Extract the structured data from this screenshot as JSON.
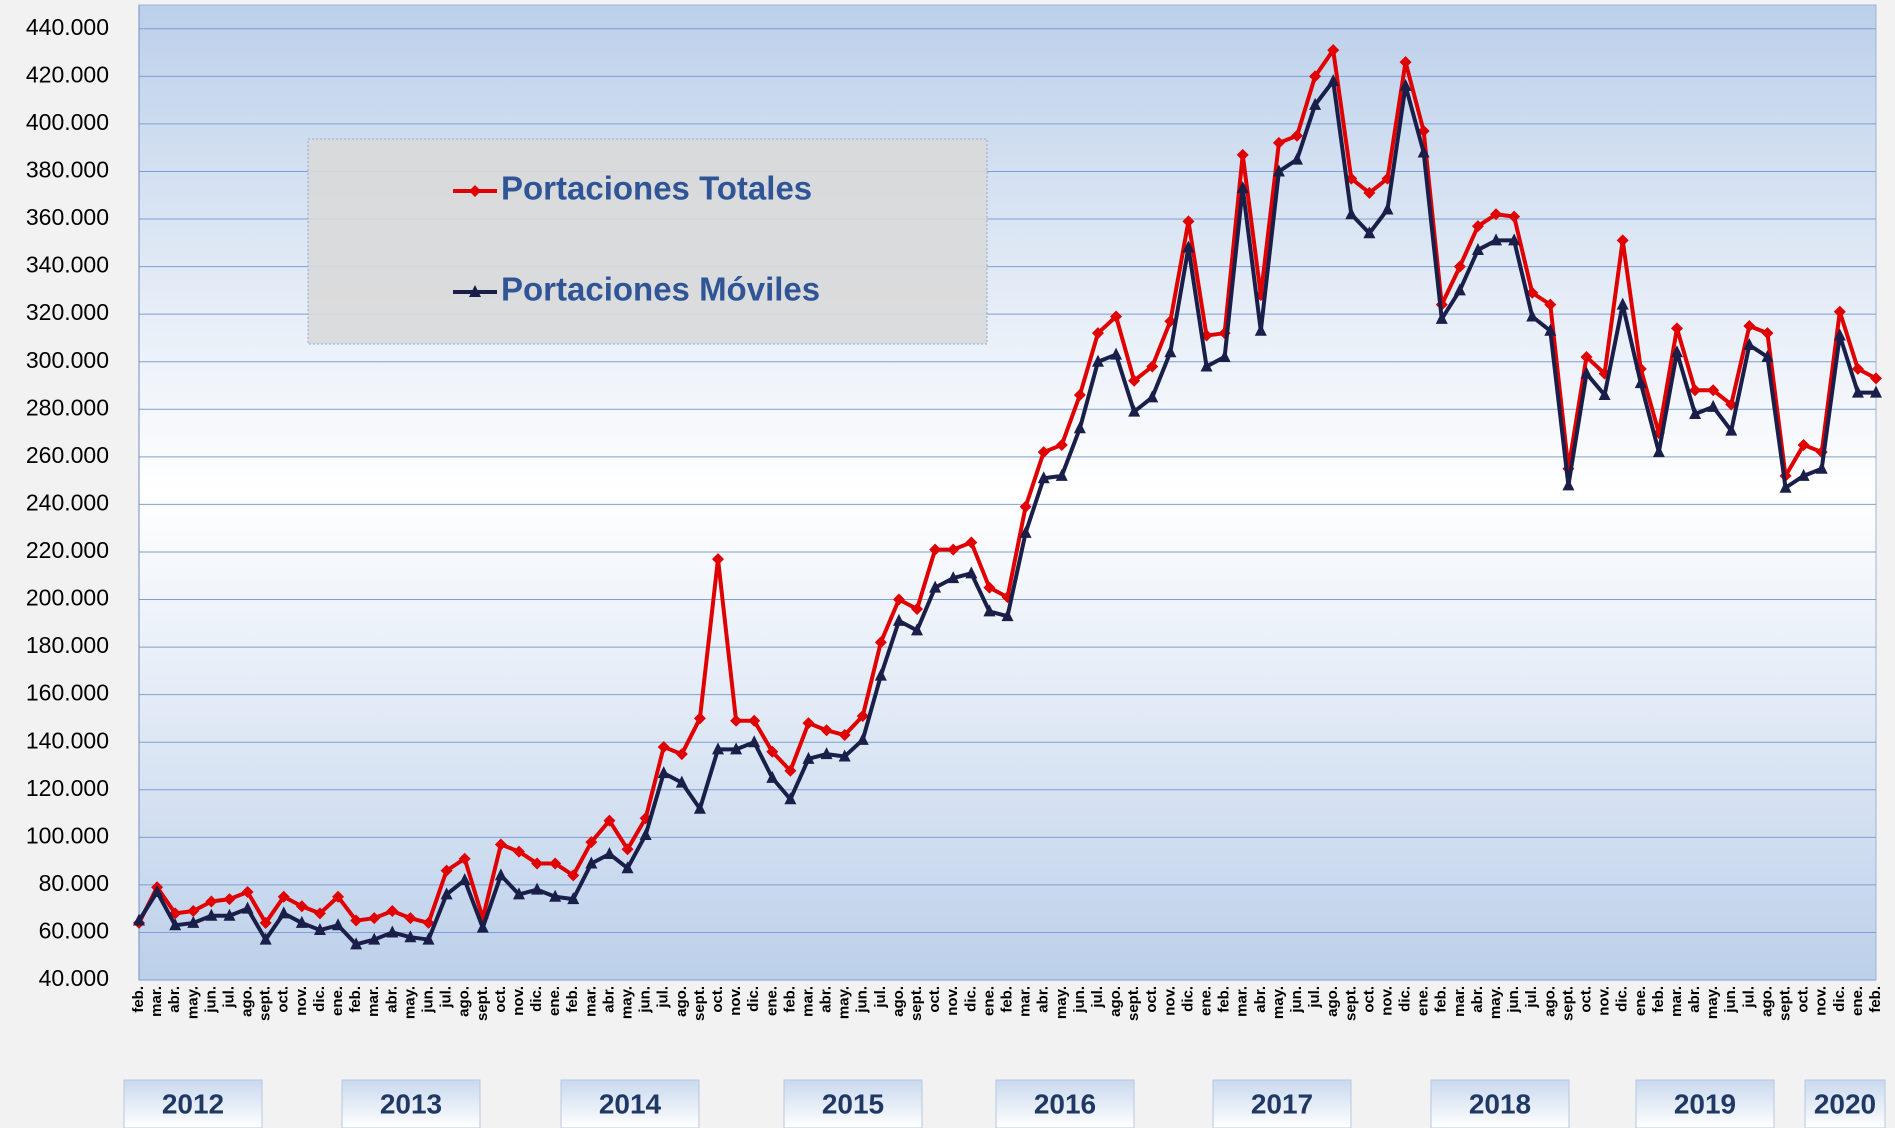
{
  "chart_data": {
    "type": "line",
    "categories": [
      "feb.",
      "mar.",
      "abr.",
      "may.",
      "jun.",
      "jul.",
      "ago.",
      "sept.",
      "oct.",
      "nov.",
      "dic.",
      "ene.",
      "feb.",
      "mar.",
      "abr.",
      "may.",
      "jun.",
      "jul.",
      "ago.",
      "sept.",
      "oct.",
      "nov.",
      "dic.",
      "ene.",
      "feb.",
      "mar.",
      "abr.",
      "may.",
      "jun.",
      "jul.",
      "ago.",
      "sept.",
      "oct.",
      "nov.",
      "dic.",
      "ene.",
      "feb.",
      "mar.",
      "abr.",
      "may.",
      "jun.",
      "jul.",
      "ago.",
      "sept.",
      "oct.",
      "nov.",
      "dic.",
      "ene.",
      "feb.",
      "mar.",
      "abr.",
      "may.",
      "jun.",
      "jul.",
      "ago.",
      "sept.",
      "oct.",
      "nov.",
      "dic.",
      "ene.",
      "feb.",
      "mar.",
      "abr.",
      "may.",
      "jun.",
      "jul.",
      "ago.",
      "sept.",
      "oct.",
      "nov.",
      "dic.",
      "ene.",
      "feb.",
      "mar.",
      "abr.",
      "may.",
      "jun.",
      "jul.",
      "ago.",
      "sept.",
      "oct.",
      "nov.",
      "dic.",
      "ene.",
      "feb.",
      "mar.",
      "abr.",
      "may.",
      "jun.",
      "jul.",
      "ago.",
      "sept.",
      "oct.",
      "nov.",
      "dic.",
      "ene.",
      "feb."
    ],
    "year_groups": [
      "2012",
      "2013",
      "2014",
      "2015",
      "2016",
      "2017",
      "2018",
      "2019",
      "2020"
    ],
    "series": [
      {
        "name": "Portaciones Totales",
        "color": "#e00000",
        "marker": "diamond",
        "values": [
          64000,
          79000,
          68000,
          69000,
          73000,
          74000,
          77000,
          64000,
          75000,
          71000,
          68000,
          75000,
          65000,
          66000,
          69000,
          66000,
          64000,
          86000,
          91000,
          66000,
          97000,
          94000,
          89000,
          89000,
          84000,
          98000,
          107000,
          95000,
          108000,
          138000,
          135000,
          150000,
          217000,
          149000,
          149000,
          136000,
          128000,
          148000,
          145000,
          143000,
          151000,
          182000,
          200000,
          196000,
          221000,
          221000,
          224000,
          205000,
          201000,
          239000,
          262000,
          265000,
          286000,
          312000,
          319000,
          292000,
          298000,
          317000,
          359000,
          311000,
          312000,
          387000,
          328000,
          392000,
          395000,
          420000,
          431000,
          377000,
          371000,
          377000,
          426000,
          397000,
          324000,
          340000,
          357000,
          362000,
          361000,
          329000,
          324000,
          255000,
          302000,
          295000,
          351000,
          297000,
          270000,
          314000,
          288000,
          288000,
          282000,
          315000,
          312000,
          252000,
          265000,
          262000,
          321000,
          297000,
          293000
        ]
      },
      {
        "name": "Portaciones Móviles",
        "color": "#1a1f4a",
        "marker": "triangle",
        "values": [
          65000,
          77000,
          63000,
          64000,
          67000,
          67000,
          70000,
          57000,
          68000,
          64000,
          61000,
          63000,
          55000,
          57000,
          60000,
          58000,
          57000,
          76000,
          82000,
          62000,
          84000,
          76000,
          78000,
          75000,
          74000,
          89000,
          93000,
          87000,
          101000,
          127000,
          123000,
          112000,
          137000,
          137000,
          140000,
          125000,
          116000,
          133000,
          135000,
          134000,
          141000,
          168000,
          191000,
          187000,
          205000,
          209000,
          211000,
          195000,
          193000,
          228000,
          251000,
          252000,
          272000,
          300000,
          303000,
          279000,
          285000,
          304000,
          348000,
          298000,
          302000,
          373000,
          313000,
          380000,
          385000,
          408000,
          418000,
          362000,
          354000,
          364000,
          416000,
          388000,
          318000,
          330000,
          347000,
          351000,
          351000,
          319000,
          313000,
          248000,
          295000,
          286000,
          324000,
          291000,
          262000,
          304000,
          278000,
          281000,
          271000,
          307000,
          302000,
          247000,
          252000,
          255000,
          311000,
          287000,
          287000
        ]
      }
    ],
    "ylim": [
      40000,
      450000
    ],
    "yticks": [
      {
        "value": 40000,
        "label": "40.000"
      },
      {
        "value": 60000,
        "label": "60.000"
      },
      {
        "value": 80000,
        "label": "80.000"
      },
      {
        "value": 100000,
        "label": "100.000"
      },
      {
        "value": 120000,
        "label": "120.000"
      },
      {
        "value": 140000,
        "label": "140.000"
      },
      {
        "value": 160000,
        "label": "160.000"
      },
      {
        "value": 180000,
        "label": "180.000"
      },
      {
        "value": 200000,
        "label": "200.000"
      },
      {
        "value": 220000,
        "label": "220.000"
      },
      {
        "value": 240000,
        "label": "240.000"
      },
      {
        "value": 260000,
        "label": "260.000"
      },
      {
        "value": 280000,
        "label": "280.000"
      },
      {
        "value": 300000,
        "label": "300.000"
      },
      {
        "value": 320000,
        "label": "320.000"
      },
      {
        "value": 340000,
        "label": "340.000"
      },
      {
        "value": 360000,
        "label": "360.000"
      },
      {
        "value": 380000,
        "label": "380.000"
      },
      {
        "value": 400000,
        "label": "400.000"
      },
      {
        "value": 420000,
        "label": "420.000"
      },
      {
        "value": 440000,
        "label": "440.000"
      }
    ],
    "grid": true,
    "legend": "upper left"
  }
}
